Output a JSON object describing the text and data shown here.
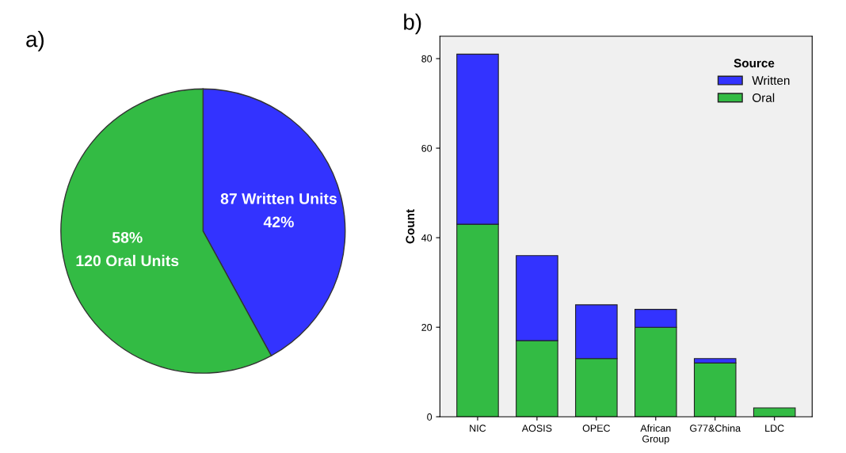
{
  "chart_data": [
    {
      "type": "pie",
      "title": "a)",
      "categories": [
        null,
        null
      ],
      "values": [
        87,
        120
      ],
      "colors": [
        "#3333ff",
        "#33bb44"
      ],
      "value_labels": [
        "87 Written Units\n42%",
        "58%\n120 Oral Units"
      ],
      "legend": false
    },
    {
      "type": "bar",
      "title": "b)",
      "ylabel": "Count",
      "stacked": true,
      "legend": "top right",
      "legend_title": "Source",
      "categories": [
        "NIC",
        "AOSIS",
        "OPEC",
        "African\nGroup",
        "G77&China",
        "LDC"
      ],
      "series": [
        {
          "name": "Oral",
          "color": "#33bb44",
          "values": [
            43,
            17,
            13,
            20,
            12,
            2
          ]
        },
        {
          "name": "Written",
          "color": "#3333ff",
          "values": [
            38,
            19,
            12,
            4,
            1,
            null
          ]
        }
      ],
      "ylim": [
        0,
        85
      ],
      "yticks": [
        0,
        20,
        40,
        60,
        80
      ],
      "grid": false
    }
  ]
}
